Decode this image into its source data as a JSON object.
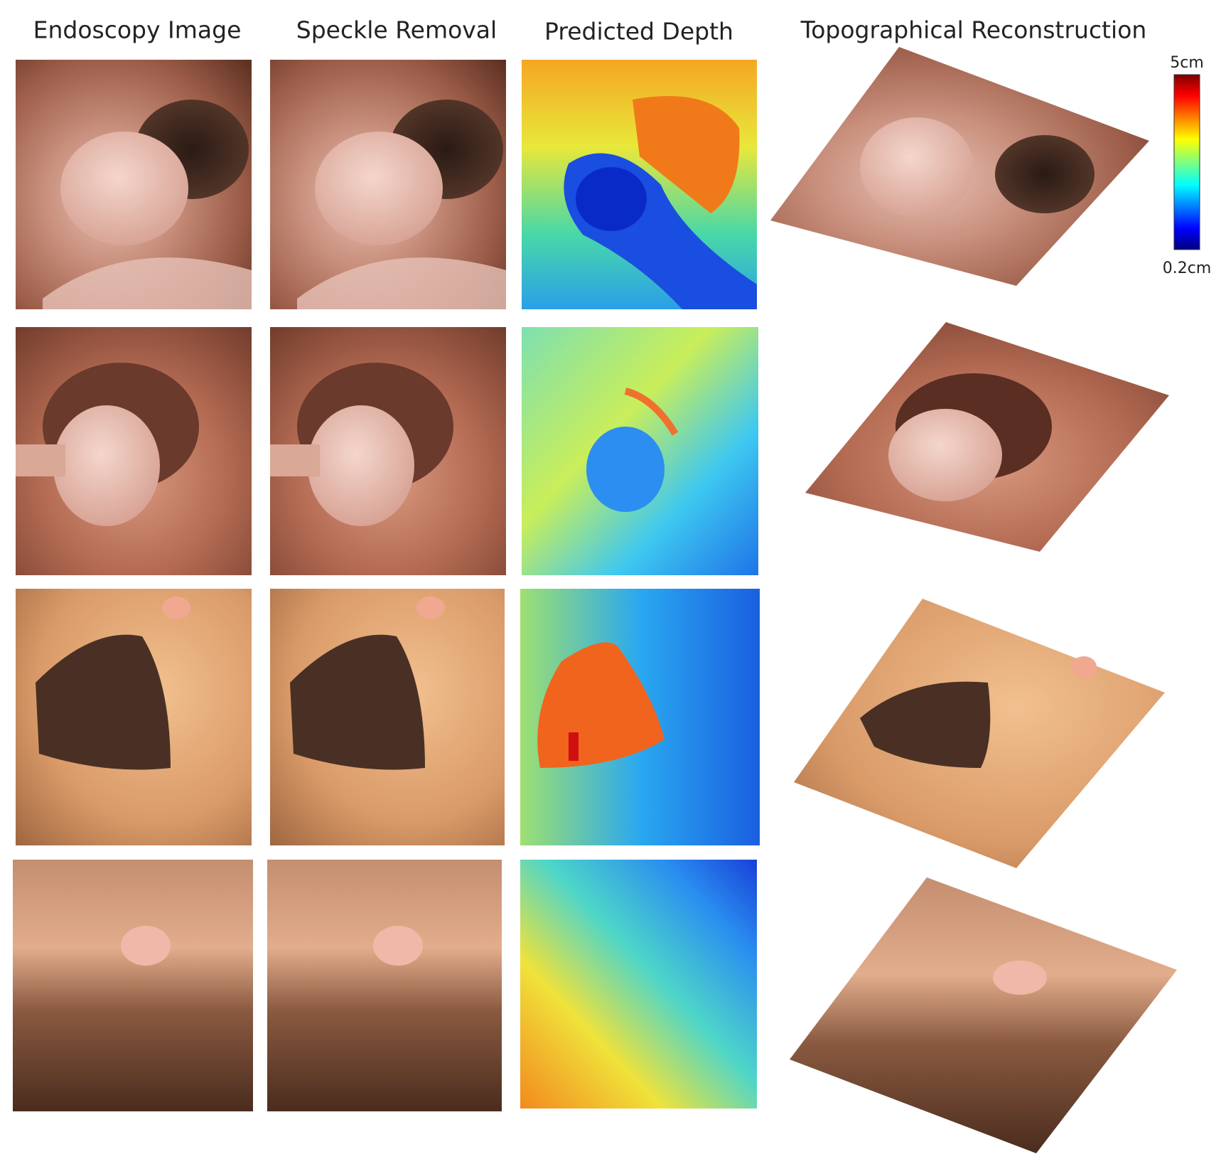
{
  "columns": [
    "Endoscopy Image",
    "Speckle Removal",
    "Predicted Depth",
    "Topographical Reconstruction"
  ],
  "colorbar": {
    "max_label": "5cm",
    "min_label": "0.2cm"
  }
}
